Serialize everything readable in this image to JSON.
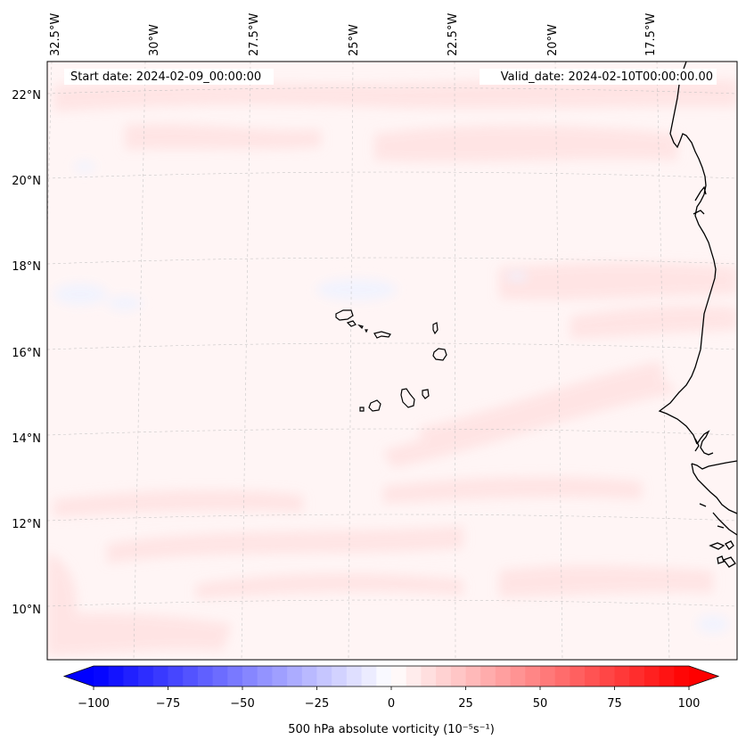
{
  "map": {
    "start_label": "Start date: 2024-02-09_00:00:00",
    "valid_label": "Valid_date: 2024-02-10T00:00:00.00",
    "lon_labels": [
      "32.5°W",
      "30°W",
      "27.5°W",
      "25°W",
      "22.5°W",
      "20°W",
      "17.5°W"
    ],
    "lat_labels": [
      "22°N",
      "20°N",
      "18°N",
      "16°N",
      "14°N",
      "12°N",
      "10°N"
    ],
    "field_colors": {
      "background": "#fff5f5",
      "light_positive": "#ffe3e3",
      "light_negative": "#f0f3ff"
    },
    "coastline_color": "#000000"
  },
  "colorbar": {
    "label": "500 hPa absolute vorticity (10⁻⁵s⁻¹)",
    "min": -100,
    "max": 100,
    "step": 5,
    "extend": "both",
    "tick_values": [
      -100,
      -75,
      -50,
      -25,
      0,
      25,
      50,
      75,
      100
    ],
    "tick_labels": [
      "−100",
      "−75",
      "−50",
      "−25",
      "0",
      "25",
      "50",
      "75",
      "100"
    ],
    "negative_color": "#0000ff",
    "positive_color": "#ff0000",
    "neutral_color": "#ffffff"
  }
}
